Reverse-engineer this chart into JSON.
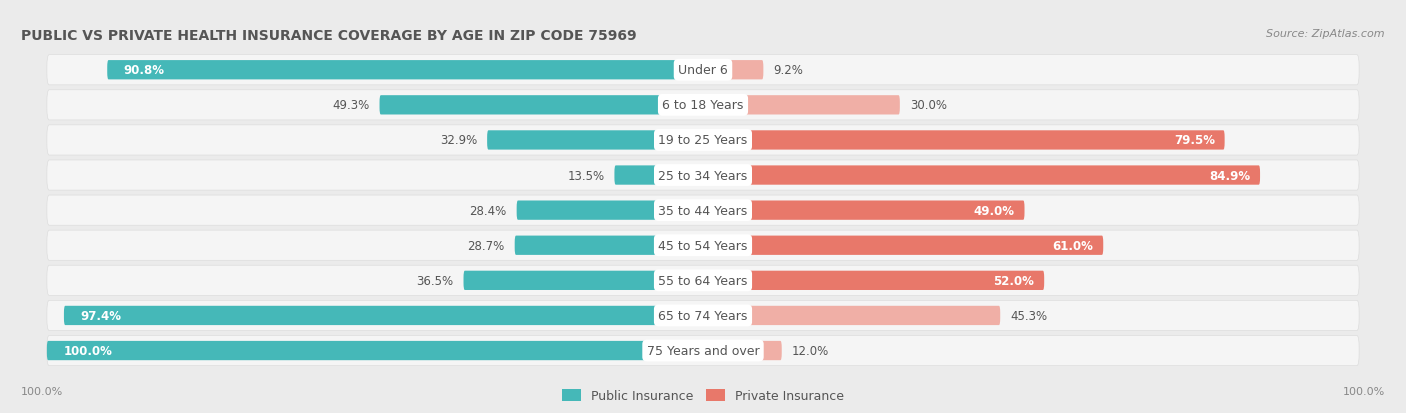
{
  "title": "Public vs Private Health Insurance Coverage by Age in Zip Code 75969",
  "title_display": "PUBLIC VS PRIVATE HEALTH INSURANCE COVERAGE BY AGE IN ZIP CODE 75969",
  "source": "Source: ZipAtlas.com",
  "categories": [
    "Under 6",
    "6 to 18 Years",
    "19 to 25 Years",
    "25 to 34 Years",
    "35 to 44 Years",
    "45 to 54 Years",
    "55 to 64 Years",
    "65 to 74 Years",
    "75 Years and over"
  ],
  "public_values": [
    90.8,
    49.3,
    32.9,
    13.5,
    28.4,
    28.7,
    36.5,
    97.4,
    100.0
  ],
  "private_values": [
    9.2,
    30.0,
    79.5,
    84.9,
    49.0,
    61.0,
    52.0,
    45.3,
    12.0
  ],
  "public_color": "#45B8B8",
  "private_color": "#E8786A",
  "private_color_light": "#F0AFA6",
  "bg_color": "#EBEBEB",
  "row_bg_color": "#F5F5F5",
  "title_color": "#555555",
  "label_dark_color": "#555555",
  "label_white_color": "#FFFFFF",
  "axis_label_color": "#888888",
  "cat_label_color": "#555555",
  "legend_public": "Public Insurance",
  "legend_private": "Private Insurance",
  "max_val": 100.0,
  "bar_height": 0.55,
  "row_padding": 0.07
}
